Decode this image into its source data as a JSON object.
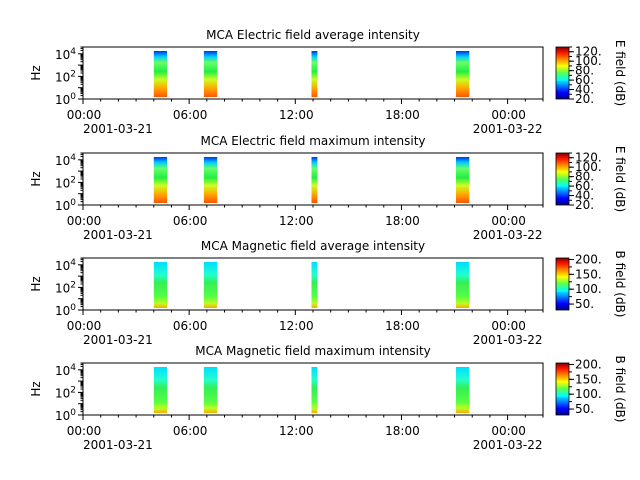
{
  "figure": {
    "x_ticks": [
      "00:00",
      "06:00",
      "12:00",
      "18:00",
      "00:00"
    ],
    "x_start_date": "2001-03-21",
    "x_end_date": "2001-03-22",
    "y_label": "Hz"
  },
  "chart_data": [
    {
      "type": "heatmap",
      "title": "MCA  Electric field average intensity",
      "xlabel": "",
      "ylabel": "Hz",
      "y_scale": "log",
      "ylim": [
        1,
        40000
      ],
      "xlim": [
        "2001-03-21 00:00",
        "2001-03-22 02:00"
      ],
      "x_tick_labels": [
        "00:00",
        "06:00",
        "12:00",
        "18:00",
        "00:00"
      ],
      "y_tick_labels": [
        "10^0",
        "10^2",
        "10^4"
      ],
      "colorbar": {
        "label": "E field (dB)",
        "range": [
          20,
          130
        ],
        "ticks": [
          20,
          40,
          60,
          80,
          100,
          120
        ]
      },
      "data_intervals": [
        {
          "start": "2001-03-21 04:00",
          "end": "2001-03-21 04:45"
        },
        {
          "start": "2001-03-21 06:50",
          "end": "2001-03-21 07:35"
        },
        {
          "start": "2001-03-21 12:55",
          "end": "2001-03-21 13:15"
        },
        {
          "start": "2001-03-21 21:05",
          "end": "2001-03-21 21:50"
        }
      ]
    },
    {
      "type": "heatmap",
      "title": "MCA  Electric field maximum intensity",
      "xlabel": "",
      "ylabel": "Hz",
      "y_scale": "log",
      "ylim": [
        1,
        40000
      ],
      "xlim": [
        "2001-03-21 00:00",
        "2001-03-22 02:00"
      ],
      "x_tick_labels": [
        "00:00",
        "06:00",
        "12:00",
        "18:00",
        "00:00"
      ],
      "y_tick_labels": [
        "10^0",
        "10^2",
        "10^4"
      ],
      "colorbar": {
        "label": "E field (dB)",
        "range": [
          20,
          130
        ],
        "ticks": [
          20,
          40,
          60,
          80,
          100,
          120
        ]
      },
      "data_intervals": [
        {
          "start": "2001-03-21 04:00",
          "end": "2001-03-21 04:45"
        },
        {
          "start": "2001-03-21 06:50",
          "end": "2001-03-21 07:35"
        },
        {
          "start": "2001-03-21 12:55",
          "end": "2001-03-21 13:15"
        },
        {
          "start": "2001-03-21 21:05",
          "end": "2001-03-21 21:50"
        }
      ]
    },
    {
      "type": "heatmap",
      "title": "MCA  Magnetic field average intensity",
      "xlabel": "",
      "ylabel": "Hz",
      "y_scale": "log",
      "ylim": [
        1,
        40000
      ],
      "xlim": [
        "2001-03-21 00:00",
        "2001-03-22 02:00"
      ],
      "x_tick_labels": [
        "00:00",
        "06:00",
        "12:00",
        "18:00",
        "00:00"
      ],
      "y_tick_labels": [
        "10^0",
        "10^2",
        "10^4"
      ],
      "colorbar": {
        "label": "B field (dB)",
        "range": [
          30,
          205
        ],
        "ticks": [
          50,
          100,
          150,
          200
        ]
      },
      "data_intervals": [
        {
          "start": "2001-03-21 04:00",
          "end": "2001-03-21 04:45"
        },
        {
          "start": "2001-03-21 06:50",
          "end": "2001-03-21 07:35"
        },
        {
          "start": "2001-03-21 12:55",
          "end": "2001-03-21 13:15"
        },
        {
          "start": "2001-03-21 21:05",
          "end": "2001-03-21 21:50"
        }
      ]
    },
    {
      "type": "heatmap",
      "title": "MCA  Magnetic field maximum intensity",
      "xlabel": "",
      "ylabel": "Hz",
      "y_scale": "log",
      "ylim": [
        1,
        40000
      ],
      "xlim": [
        "2001-03-21 00:00",
        "2001-03-22 02:00"
      ],
      "x_tick_labels": [
        "00:00",
        "06:00",
        "12:00",
        "18:00",
        "00:00"
      ],
      "y_tick_labels": [
        "10^0",
        "10^2",
        "10^4"
      ],
      "colorbar": {
        "label": "B field (dB)",
        "range": [
          30,
          205
        ],
        "ticks": [
          50,
          100,
          150,
          200
        ]
      },
      "data_intervals": [
        {
          "start": "2001-03-21 04:00",
          "end": "2001-03-21 04:45"
        },
        {
          "start": "2001-03-21 06:50",
          "end": "2001-03-21 07:35"
        },
        {
          "start": "2001-03-21 12:55",
          "end": "2001-03-21 13:15"
        },
        {
          "start": "2001-03-21 21:05",
          "end": "2001-03-21 21:50"
        }
      ]
    }
  ]
}
